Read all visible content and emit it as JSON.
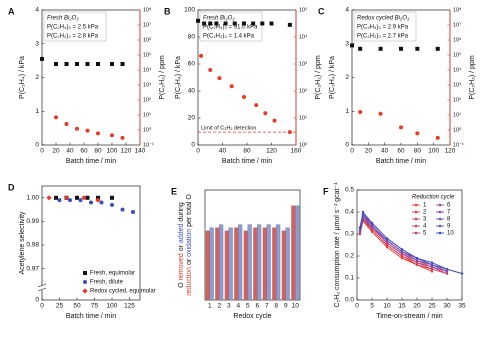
{
  "chart_data": [
    {
      "type": "scatter",
      "panel_label": "A",
      "xlabel": "Batch time / min",
      "ylabel": "P(C₂H₄) / kPa",
      "y2label": "P(C₂H₂) / ppm",
      "xlim": [
        0,
        140
      ],
      "xticks": [
        0,
        20,
        40,
        60,
        80,
        100,
        120,
        140
      ],
      "ylim": [
        0,
        4
      ],
      "yticks": [
        0,
        1,
        2,
        3,
        4
      ],
      "y2lim": [
        0.1,
        100000000
      ],
      "y2log": true,
      "y2color": "#e8392a",
      "y2ticks": [
        {
          "value": 0.1,
          "label": "10⁻¹"
        },
        {
          "value": 1,
          "label": "10⁰"
        },
        {
          "value": 10,
          "label": "10¹"
        },
        {
          "value": 100,
          "label": "10²"
        },
        {
          "value": 1000,
          "label": "10³"
        },
        {
          "value": 10000,
          "label": "10⁴"
        },
        {
          "value": 100000,
          "label": "10⁵"
        },
        {
          "value": 1000000,
          "label": "10⁶"
        },
        {
          "value": 10000000,
          "label": "10⁷"
        },
        {
          "value": 100000000,
          "label": "10⁸"
        }
      ],
      "annotations": [
        "Fresh Bi₂O₃",
        "P(C₂H₄)₀ = 2.5 kPa",
        "P(C₂H₂)₀ = 2.8 kPa"
      ],
      "annotation_colors": [
        "#111",
        "#111",
        "#e8392a"
      ],
      "series": [
        {
          "color": "#111",
          "marker": "square",
          "x": [
            0,
            20,
            35,
            50,
            65,
            80,
            100,
            115
          ],
          "values": [
            2.55,
            2.4,
            2.4,
            2.4,
            2.4,
            2.4,
            2.4,
            2.4
          ]
        },
        {
          "color": "#e8392a",
          "marker": "circle",
          "axis": "y2",
          "x": [
            20,
            35,
            50,
            65,
            80,
            100,
            115
          ],
          "values": [
            7,
            2.5,
            1.2,
            0.9,
            0.6,
            0.45,
            0.3
          ]
        }
      ]
    },
    {
      "type": "scatter",
      "panel_label": "B",
      "xlabel": "Batch time / min",
      "ylabel": "P(C₂H₄) / kPa",
      "y2label": "P(C₂H₂) / ppm",
      "xlim": [
        0,
        160
      ],
      "xticks": [
        0,
        40,
        80,
        120,
        160
      ],
      "ylim": [
        0,
        100
      ],
      "yticks": [
        0,
        20,
        40,
        60,
        80,
        100
      ],
      "y2lim": [
        1,
        100000
      ],
      "y2log": true,
      "y2color": "#e8392a",
      "y2ticks": [
        {
          "value": 1,
          "label": "10⁰"
        },
        {
          "value": 10,
          "label": "10¹"
        },
        {
          "value": 100,
          "label": "10²"
        },
        {
          "value": 1000,
          "label": "10³"
        },
        {
          "value": 10000,
          "label": "10⁴"
        },
        {
          "value": 100000,
          "label": "10⁵"
        }
      ],
      "annotations": [
        "Fresh Bi₂O₃",
        "P(C₂H₄)₀ = 91.0 kPa",
        "P(C₂H₂)₀ = 1.4 kPa"
      ],
      "annotation_colors": [
        "#111",
        "#111",
        "#e8392a"
      ],
      "hline": {
        "value": 3,
        "axis": "y2",
        "label": "Limit of C₂H₂ detection"
      },
      "series": [
        {
          "color": "#111",
          "marker": "square",
          "x": [
            0,
            10,
            20,
            30,
            45,
            60,
            75,
            90,
            105,
            120,
            150
          ],
          "values": [
            92,
            90,
            90,
            90,
            90,
            90,
            90,
            90,
            90,
            90,
            89
          ]
        },
        {
          "color": "#e8392a",
          "marker": "circle",
          "axis": "y2",
          "x": [
            5,
            20,
            35,
            55,
            75,
            95,
            110,
            125,
            150
          ],
          "values": [
            2000,
            600,
            300,
            150,
            60,
            30,
            15,
            8,
            3
          ]
        }
      ]
    },
    {
      "type": "scatter",
      "panel_label": "C",
      "xlabel": "Batch time / min",
      "ylabel": "P(C₂H₄) / kPa",
      "y2label": "P(C₂H₂) / ppm",
      "xlim": [
        0,
        120
      ],
      "xticks": [
        0,
        20,
        40,
        60,
        80,
        100,
        120
      ],
      "ylim": [
        0,
        4
      ],
      "yticks": [
        0,
        1,
        2,
        3,
        4
      ],
      "y2lim": [
        0.1,
        100000000
      ],
      "y2log": true,
      "y2color": "#e8392a",
      "y2ticks": [
        {
          "value": 0.1,
          "label": "10⁻¹"
        },
        {
          "value": 1,
          "label": "10⁰"
        },
        {
          "value": 10,
          "label": "10¹"
        },
        {
          "value": 100,
          "label": "10²"
        },
        {
          "value": 1000,
          "label": "10³"
        },
        {
          "value": 10000,
          "label": "10⁴"
        },
        {
          "value": 100000,
          "label": "10⁵"
        },
        {
          "value": 1000000,
          "label": "10⁶"
        },
        {
          "value": 10000000,
          "label": "10⁷"
        },
        {
          "value": 100000000,
          "label": "10⁸"
        }
      ],
      "annotations": [
        "Redox cycled Bi₂O₃",
        "P(C₂H₄)₀ = 2.9 kPa",
        "P(C₂H₂)₀ = 2.7 kPa"
      ],
      "annotation_colors": [
        "#111",
        "#111",
        "#e8392a"
      ],
      "series": [
        {
          "color": "#111",
          "marker": "square",
          "x": [
            0,
            10,
            35,
            60,
            80,
            105
          ],
          "values": [
            2.95,
            2.85,
            2.85,
            2.85,
            2.85,
            2.85
          ]
        },
        {
          "color": "#e8392a",
          "marker": "circle",
          "axis": "y2",
          "x": [
            10,
            35,
            60,
            80,
            105
          ],
          "values": [
            16,
            12,
            1.5,
            0.6,
            0.3
          ]
        }
      ]
    },
    {
      "type": "scatter",
      "panel_label": "D",
      "xlabel": "Batch time / min",
      "ylabel": "Acetylene selectivity",
      "xlim": [
        0,
        140
      ],
      "xticks": [
        0,
        25,
        50,
        75,
        100,
        125
      ],
      "ylim": [
        0.966,
        1.005
      ],
      "yticks": [
        0.97,
        0.98,
        0.99,
        {
          "value": 1,
          "label": "1.00"
        }
      ],
      "ybreak_tick": 0,
      "legend": "lower right",
      "series": [
        {
          "name": "Fresh, equimolar",
          "color": "#111",
          "marker": "square",
          "x": [
            20,
            35,
            50,
            65,
            80,
            100
          ],
          "values": [
            1,
            1,
            1,
            1,
            1,
            1
          ]
        },
        {
          "name": "Fresh, dilute",
          "color": "#3a4fc0",
          "marker": "circle",
          "x": [
            25,
            40,
            55,
            70,
            85,
            100,
            115,
            130
          ],
          "values": [
            0.999,
            0.999,
            0.999,
            0.998,
            0.998,
            0.997,
            0.995,
            0.994
          ]
        },
        {
          "name": "Redox cycled, equimolar",
          "color": "#e8392a",
          "marker": "diamond",
          "x": [
            10,
            35,
            60,
            80
          ],
          "values": [
            1,
            1,
            1,
            0.999
          ]
        }
      ]
    },
    {
      "type": "bar",
      "panel_label": "E",
      "xlabel": "Redox cycle",
      "ylim": [
        0,
        0.35
      ],
      "ylabel": [
        [
          "O ",
          "removed",
          " or ",
          "added",
          " during"
        ],
        [
          "reduction",
          " or ",
          "oxidation",
          " per total O"
        ]
      ],
      "ylabel_colors": [
        [
          "#111",
          "#e8392a",
          "#111",
          "#3a4fc0",
          "#111"
        ],
        [
          "#e8392a",
          "#111",
          "#3a4fc0",
          "#111"
        ]
      ],
      "categories": [
        "1",
        "2",
        "3",
        "4",
        "5",
        "6",
        "7",
        "8",
        "9",
        "10"
      ],
      "series": [
        {
          "color": "#d9605a",
          "values": [
            0.22,
            0.23,
            0.22,
            0.23,
            0.22,
            0.23,
            0.23,
            0.23,
            0.22,
            0.3
          ]
        },
        {
          "color": "#8d9bd6",
          "values": [
            0.23,
            0.24,
            0.23,
            0.24,
            0.24,
            0.24,
            0.24,
            0.24,
            0.23,
            0.3
          ]
        }
      ]
    },
    {
      "type": "line",
      "panel_label": "F",
      "xlabel": "Time-on-stream / min",
      "ylabel": "C₂H₂ consumption rate / μmol s⁻¹ gcat⁻¹",
      "xlim": [
        0,
        35
      ],
      "xticks": [
        0,
        5,
        10,
        15,
        20,
        25,
        30,
        35
      ],
      "ylim": [
        0,
        0.5
      ],
      "yticks": [
        {
          "value": 0,
          "label": "0.0"
        },
        0.1,
        0.2,
        0.3,
        0.4,
        0.5
      ],
      "legend_title": "Reduction cycle",
      "x": [
        1,
        2,
        5,
        10,
        15,
        20,
        25,
        30,
        35
      ],
      "series": [
        {
          "name": "1",
          "color": "#e8392a",
          "values": [
            0.3,
            0.36,
            0.31,
            0.24,
            0.19,
            0.16,
            0.13,
            null,
            null
          ]
        },
        {
          "name": "2",
          "color": "#dc3a40",
          "values": [
            0.31,
            0.37,
            0.32,
            0.25,
            0.2,
            0.16,
            0.14,
            null,
            null
          ]
        },
        {
          "name": "3",
          "color": "#cf3c57",
          "values": [
            0.3,
            0.36,
            0.32,
            0.25,
            0.2,
            0.17,
            0.14,
            0.12,
            null
          ]
        },
        {
          "name": "4",
          "color": "#c23e6e",
          "values": [
            0.31,
            0.37,
            0.33,
            0.26,
            0.21,
            0.17,
            0.15,
            0.12,
            null
          ]
        },
        {
          "name": "5",
          "color": "#b04184",
          "values": [
            0.32,
            0.37,
            0.33,
            0.26,
            0.21,
            0.18,
            0.15,
            0.13,
            null
          ]
        },
        {
          "name": "6",
          "color": "#9c4496",
          "values": [
            0.31,
            0.38,
            0.33,
            0.27,
            0.22,
            0.18,
            0.15,
            0.13,
            null
          ]
        },
        {
          "name": "7",
          "color": "#8547a6",
          "values": [
            0.32,
            0.38,
            0.34,
            0.27,
            0.22,
            0.18,
            0.16,
            0.13,
            null
          ]
        },
        {
          "name": "8",
          "color": "#6c4bb2",
          "values": [
            0.33,
            0.39,
            0.34,
            0.27,
            0.22,
            0.19,
            0.16,
            0.14,
            null
          ]
        },
        {
          "name": "9",
          "color": "#524ebb",
          "values": [
            0.32,
            0.39,
            0.35,
            0.28,
            0.23,
            0.19,
            0.16,
            0.14,
            0.12
          ]
        },
        {
          "name": "10",
          "color": "#3a4fc0",
          "values": [
            0.33,
            0.4,
            0.35,
            0.28,
            0.23,
            0.19,
            0.17,
            0.14,
            0.12
          ]
        }
      ]
    }
  ]
}
